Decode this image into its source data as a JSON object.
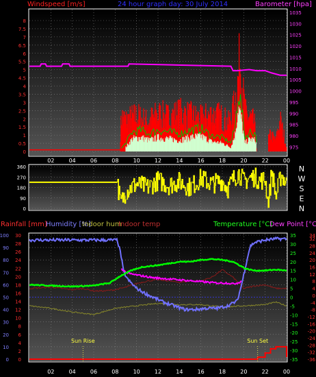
{
  "header": {
    "title": "24 hour graph day: 30 July 2014",
    "wind_label": "Windspeed [m/s]",
    "baro_label": "Barometer [hpa]"
  },
  "colors": {
    "windspeed": "#ff0000",
    "windavg": "#d0ffd0",
    "gust_line": "#00c000",
    "barometer": "#ff00ff",
    "direction": "#ffff00",
    "rainfall": "#ff0000",
    "humidity": "#7070ff",
    "indoor_hum": "#8a8a2a",
    "indoor_temp": "#8a1a1a",
    "temperature": "#00ff00",
    "dewpoint": "#ff00ff"
  },
  "chart_data": [
    {
      "type": "area",
      "title": "24 hour graph day: 30 July 2014",
      "x_ticks": [
        "02",
        "04",
        "06",
        "08",
        "10",
        "12",
        "14",
        "16",
        "18",
        "20",
        "22",
        "00"
      ],
      "y_left": {
        "label": "Windspeed [m/s]",
        "ticks": [
          "0",
          "0.5",
          "1",
          "1.5",
          "2",
          "2.5",
          "3",
          "3.5",
          "4",
          "4.5",
          "5",
          "5.5",
          "6",
          "6.5",
          "7",
          "7.5",
          "8"
        ],
        "range": [
          0,
          8
        ]
      },
      "y_right": {
        "label": "Barometer [hpa]",
        "ticks": [
          "975",
          "980",
          "985",
          "990",
          "995",
          "1000",
          "1005",
          "1010",
          "1015",
          "1020",
          "1025",
          "1030",
          "1035"
        ],
        "range": [
          973,
          1035
        ]
      },
      "series": [
        {
          "name": "Barometer [hpa]",
          "axis": "right",
          "x": [
            0,
            1,
            1.1,
            1.5,
            1.6,
            3,
            3.1,
            3.7,
            3.8,
            9.2,
            9.3,
            18.8,
            19.0,
            19.4,
            20.5,
            21.2,
            22,
            22.6,
            23.4,
            24
          ],
          "y": [
            1011,
            1011,
            1012,
            1012,
            1011,
            1011,
            1012,
            1012,
            1011,
            1011,
            1012,
            1011,
            1009,
            1009,
            1009.5,
            1009,
            1009,
            1008,
            1007,
            1007
          ]
        },
        {
          "name": "Wind speed",
          "axis": "left",
          "x": [
            0,
            8.4,
            8.6,
            9,
            10,
            11,
            12,
            13,
            14,
            15,
            16,
            17,
            18,
            18.6,
            19,
            19.4,
            19.7,
            19.9,
            20.2,
            20.6,
            21,
            21.2,
            21.8,
            22.5,
            23,
            23.4,
            23.8,
            24
          ],
          "y": [
            0.1,
            0.1,
            2.5,
            2.2,
            2.5,
            2.1,
            2.6,
            2.4,
            2.7,
            2.5,
            2.3,
            2.6,
            2.4,
            2.0,
            2.8,
            4.5,
            6.8,
            4.2,
            2.6,
            2.4,
            2.0,
            0.1,
            0.1,
            1.2,
            0.8,
            2.2,
            1.0,
            0.2
          ]
        },
        {
          "name": "Wind average",
          "axis": "left",
          "x": [
            0,
            8.6,
            9.0,
            9.6,
            10.4,
            11.2,
            12,
            13,
            14,
            15,
            16,
            17,
            18,
            18.8,
            19.2,
            19.5,
            19.8,
            20.1,
            20.6,
            21.1,
            21.3,
            24
          ],
          "y": [
            0,
            0,
            0.3,
            0.9,
            1.0,
            0.8,
            1.0,
            0.9,
            0.8,
            1.0,
            1.1,
            0.7,
            0.6,
            0.3,
            1.2,
            3.2,
            2.2,
            0.6,
            0.9,
            0.8,
            0,
            0
          ]
        }
      ]
    },
    {
      "type": "scatter",
      "title": "",
      "x_ticks": [
        "02",
        "04",
        "06",
        "08",
        "10",
        "12",
        "14",
        "16",
        "18",
        "20",
        "22",
        "00"
      ],
      "y_left": {
        "ticks": [
          "0",
          "90",
          "180",
          "270",
          "360"
        ],
        "range": [
          0,
          360
        ]
      },
      "y_right": {
        "ticks": [
          "N",
          "W",
          "S",
          "E",
          "N"
        ]
      },
      "series": [
        {
          "name": "Wind direction",
          "x": [
            0,
            8.2,
            8.5,
            9,
            10,
            11,
            12,
            13,
            14,
            15,
            16,
            17,
            18,
            18.5,
            19,
            19.5,
            20,
            20.5,
            21,
            21.5,
            22,
            22.3,
            22.6,
            23,
            23.5,
            24
          ],
          "y": [
            225,
            225,
            40,
            150,
            210,
            180,
            240,
            200,
            230,
            180,
            260,
            210,
            240,
            170,
            250,
            310,
            230,
            260,
            270,
            240,
            250,
            20,
            330,
            100,
            300,
            200
          ]
        }
      ]
    },
    {
      "type": "line",
      "x_ticks": [
        "02",
        "04",
        "06",
        "08",
        "10",
        "12",
        "14",
        "16",
        "18",
        "20",
        "22",
        "00"
      ],
      "labels": {
        "rain": "Rainfall [mm]",
        "humidity": "Humidity [%]",
        "indoor_hum": "Indoor hum",
        "indoor_temp": "Indoor temp",
        "temperature": "Temperature [°C]",
        "dewpoint": "Dew Point [°C]"
      },
      "axis_humidity": {
        "ticks": [
          "0",
          "10",
          "20",
          "30",
          "40",
          "50",
          "60",
          "70",
          "80",
          "90",
          "100"
        ],
        "range": [
          0,
          100
        ]
      },
      "axis_rain": {
        "ticks": [
          "0",
          "2",
          "4",
          "6",
          "8",
          "10",
          "12",
          "14",
          "16",
          "18",
          "20",
          "22",
          "24",
          "26",
          "28",
          "30"
        ],
        "range": [
          0,
          30
        ]
      },
      "axis_temp": {
        "ticks": [
          "-35",
          "-30",
          "-25",
          "-20",
          "-15",
          "-10",
          "-5",
          "0",
          "5",
          "10",
          "15",
          "20",
          "25",
          "30",
          "35"
        ],
        "range": [
          -35,
          35
        ]
      },
      "axis_dew": {
        "ticks": [
          "-36",
          "-32",
          "-28",
          "-24",
          "-20",
          "-16",
          "-12",
          "-8",
          "-4",
          "0",
          "4",
          "8",
          "12",
          "16",
          "20",
          "24",
          "28",
          "32",
          "34"
        ],
        "range": [
          -36,
          34
        ]
      },
      "annotations": [
        "Sun Rise",
        "Sun Set"
      ],
      "sunrise_hour": 5.0,
      "sunset_hour": 21.3,
      "series": [
        {
          "name": "Humidity [%]",
          "axis": "humidity",
          "x": [
            0,
            8.2,
            8.5,
            8.8,
            9.2,
            10,
            10.8,
            11.5,
            12.5,
            13.5,
            14.5,
            15.5,
            16.5,
            17.5,
            18.5,
            19.4,
            19.8,
            20.3,
            20.6,
            21,
            22,
            23,
            24
          ],
          "y": [
            96,
            96,
            86,
            70,
            64,
            57,
            53,
            50,
            46,
            43,
            40,
            40,
            41,
            41,
            43,
            47,
            60,
            80,
            91,
            94,
            96,
            97,
            97
          ]
        },
        {
          "name": "Temperature [°C]",
          "axis": "temp",
          "x": [
            0,
            2,
            4,
            6,
            7.5,
            8.5,
            9.5,
            10.5,
            12,
            13,
            14,
            15,
            16,
            17,
            18,
            19,
            19.6,
            20.2,
            21,
            22,
            23,
            24
          ],
          "y": [
            7,
            6.5,
            6,
            6.5,
            8,
            12,
            15,
            17,
            18,
            19,
            20,
            20,
            21,
            21.5,
            21,
            20,
            18,
            16,
            15,
            15,
            15.5,
            15
          ]
        },
        {
          "name": "Dew Point [°C]",
          "axis": "dew",
          "x": [
            8.6,
            9,
            9.5,
            10.5,
            11.5,
            12.5,
            13.5,
            14.5,
            15.5,
            16.5,
            17.5,
            18.5,
            19,
            19.4,
            19.8
          ],
          "y": [
            15,
            13,
            12,
            11,
            10,
            9.5,
            9,
            8.5,
            8,
            7.5,
            7,
            7,
            6.5,
            7,
            8
          ]
        },
        {
          "name": "Indoor hum",
          "axis": "humidity",
          "x": [
            0,
            2,
            4,
            6,
            8,
            10,
            12,
            14,
            16,
            18,
            20,
            22,
            23,
            24
          ],
          "y": [
            43,
            41,
            38,
            36,
            41,
            43,
            45,
            44,
            44,
            42,
            43,
            44,
            46,
            43
          ]
        },
        {
          "name": "Indoor temp",
          "axis": "humidity",
          "x": [
            0,
            2,
            3,
            4,
            5,
            6,
            7,
            8,
            9,
            10,
            11,
            12,
            13,
            14,
            15,
            16,
            17,
            18,
            19,
            20,
            21,
            22,
            23,
            24
          ],
          "y": [
            57,
            58,
            57,
            56,
            57,
            55,
            55,
            56,
            58,
            61,
            63,
            64,
            63,
            62,
            63,
            63,
            66,
            72,
            66,
            57,
            59,
            60,
            57,
            57
          ]
        },
        {
          "name": "Rainfall [mm]",
          "axis": "rain",
          "x": [
            0,
            20.5,
            21.3,
            22,
            22.5,
            23,
            23.8,
            24
          ],
          "y": [
            0,
            0,
            0.5,
            1.5,
            2.5,
            3,
            3,
            0.5
          ]
        }
      ]
    }
  ]
}
